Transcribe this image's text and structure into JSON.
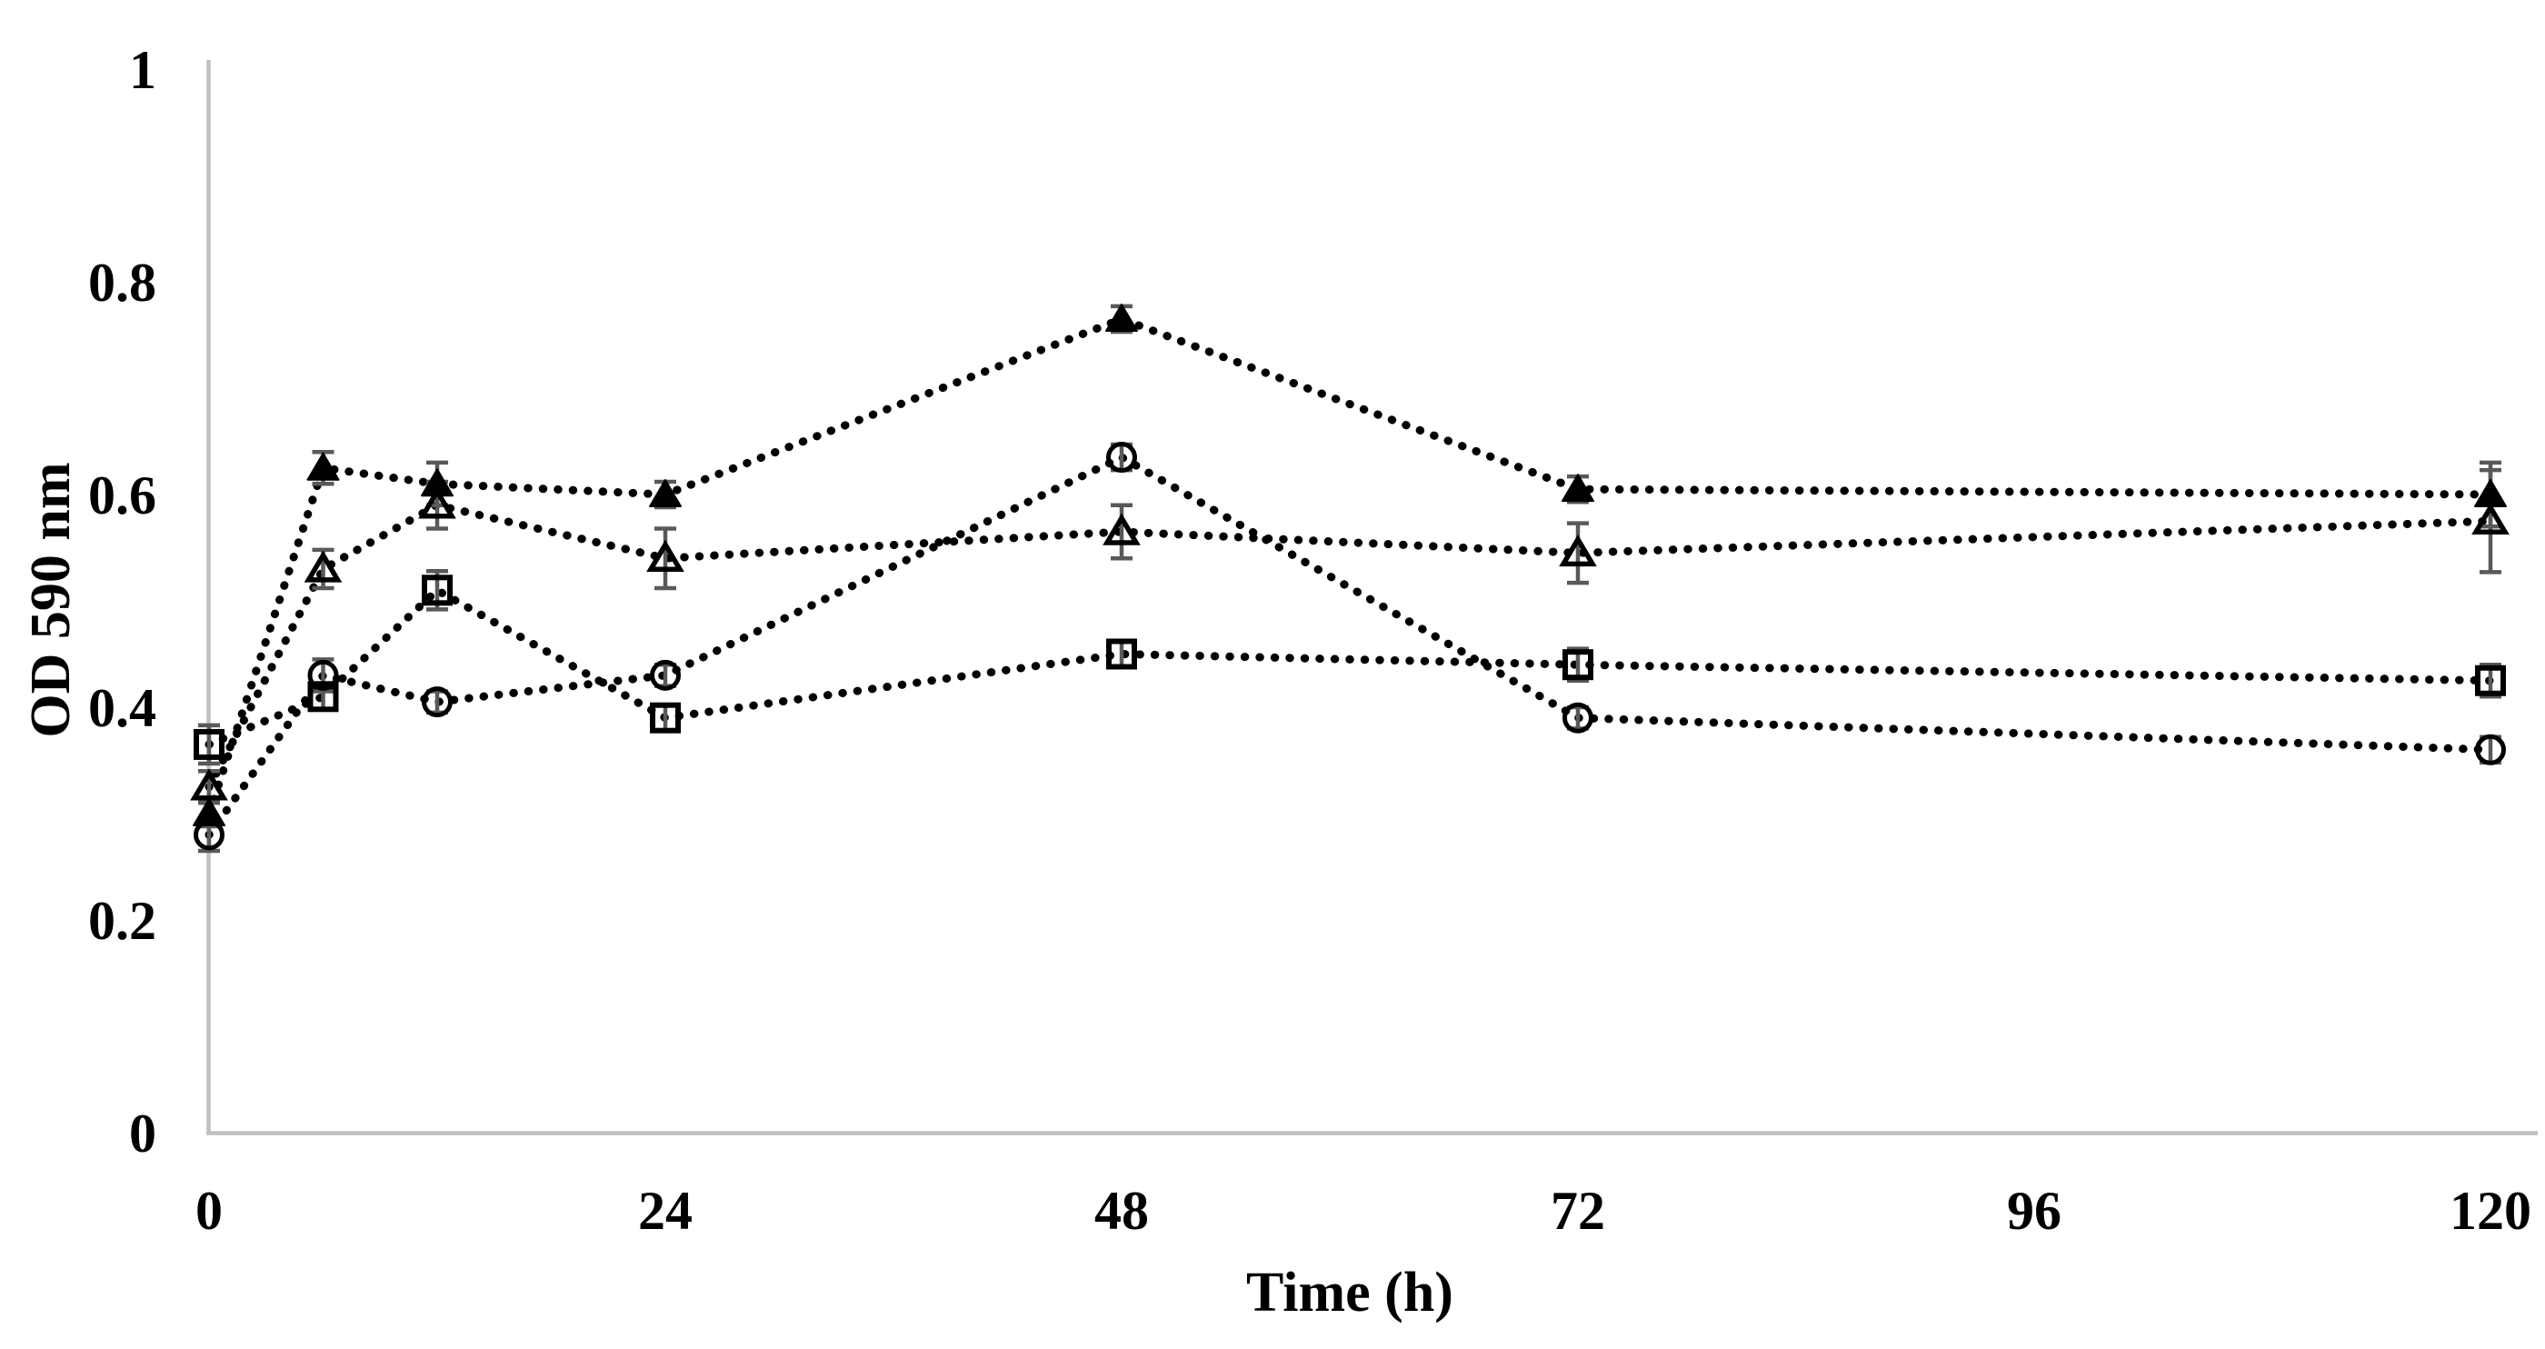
{
  "chart_data": {
    "type": "line",
    "title": "",
    "xlabel": "Time (h)",
    "ylabel": "OD 590 nm",
    "x": [
      0,
      6,
      12,
      24,
      48,
      72,
      120
    ],
    "series": [
      {
        "name": "solid-triangle-series",
        "marker": "triangle-filled",
        "values": [
          0.3,
          0.625,
          0.61,
          0.6,
          0.765,
          0.605,
          0.6
        ],
        "errors": [
          0.012,
          0.015,
          0.02,
          0.012,
          0.012,
          0.012,
          0.03
        ]
      },
      {
        "name": "open-triangle-series",
        "marker": "triangle-open",
        "values": [
          0.325,
          0.53,
          0.59,
          0.54,
          0.565,
          0.545,
          0.575
        ],
        "errors": [
          0.015,
          0.018,
          0.022,
          0.028,
          0.025,
          0.028,
          0.048
        ]
      },
      {
        "name": "open-circle-series",
        "marker": "circle-open",
        "values": [
          0.28,
          0.43,
          0.405,
          0.43,
          0.635,
          0.39,
          0.36
        ],
        "errors": [
          0.015,
          0.015,
          0.01,
          0.01,
          0.012,
          0.01,
          0.012
        ]
      },
      {
        "name": "open-square-series",
        "marker": "square-open",
        "values": [
          0.365,
          0.41,
          0.51,
          0.39,
          0.45,
          0.44,
          0.425
        ],
        "errors": [
          0.018,
          0.012,
          0.018,
          0.012,
          0.012,
          0.015,
          0.015
        ]
      }
    ],
    "x_ticks": {
      "values": [
        0,
        24,
        48,
        72,
        96,
        120
      ],
      "labels": [
        "0",
        "24",
        "48",
        "72",
        "96",
        "120"
      ]
    },
    "y_ticks": {
      "values": [
        0,
        0.2,
        0.4,
        0.6,
        0.8,
        1
      ],
      "labels": [
        "0",
        "0.2",
        "0.4",
        "0.6",
        "0.8",
        "1"
      ]
    },
    "xlim": [
      0,
      122
    ],
    "ylim": [
      0,
      1
    ],
    "grid": "off",
    "legend": "none",
    "line_style": "dotted",
    "colors": {
      "series": "#000000",
      "error_bar": "#595959",
      "axis_line": "#c0c0c0",
      "text": "#000000",
      "background": "#ffffff"
    }
  }
}
